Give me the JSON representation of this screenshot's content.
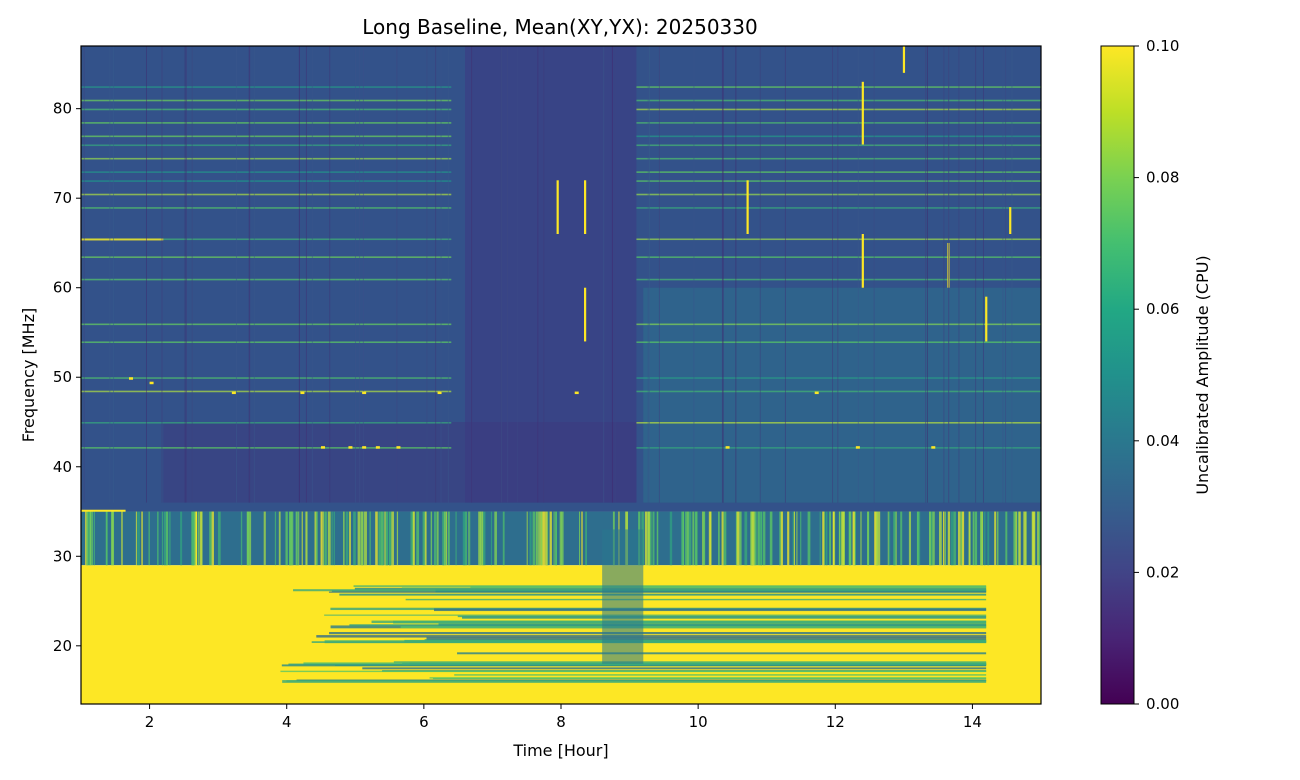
{
  "chart_data": {
    "type": "heatmap",
    "title": "Long Baseline, Mean(XY,YX): 20250330",
    "xlabel": "Time [Hour]",
    "ylabel": "Frequency [MHz]",
    "xlim": [
      1.0,
      15.0
    ],
    "ylim": [
      13.5,
      87.0
    ],
    "x_ticks": [
      2,
      4,
      6,
      8,
      10,
      12,
      14
    ],
    "y_ticks": [
      20,
      30,
      40,
      50,
      60,
      70,
      80
    ],
    "colorbar": {
      "label": "Uncalibrated Amplitude (CPU)",
      "vmin": 0.0,
      "vmax": 0.1,
      "ticks": [
        "0.00",
        "0.02",
        "0.04",
        "0.06",
        "0.08",
        "0.10"
      ],
      "colormap": "viridis"
    },
    "description_regions": [
      {
        "freq_range_mhz": [
          13.5,
          29
        ],
        "value": 0.1
      },
      {
        "freq_range_mhz": [
          29,
          35
        ],
        "value": 0.05
      },
      {
        "freq_range_mhz": [
          35,
          87
        ],
        "value": 0.02
      }
    ],
    "colors": {
      "viridis_low": "#440154",
      "viridis_mid": "#21918c",
      "viridis_high": "#fde725"
    }
  }
}
